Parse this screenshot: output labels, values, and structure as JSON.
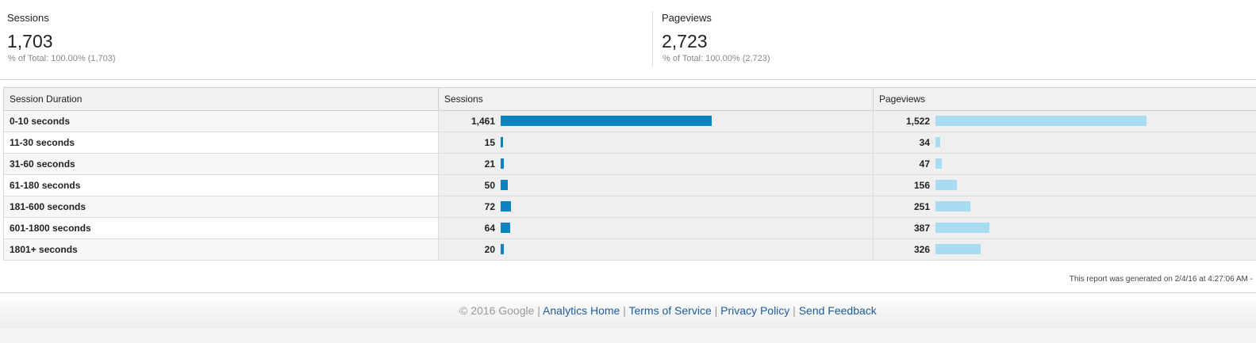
{
  "summary": {
    "sessions": {
      "label": "Sessions",
      "value": "1,703",
      "sub_prefix": "% of Total: ",
      "sub_pct": "100.00% (1,703)"
    },
    "pageviews": {
      "label": "Pageviews",
      "value": "2,723",
      "sub_prefix": "% of Total: ",
      "sub_pct": "100.00% (2,723)"
    }
  },
  "table": {
    "headers": [
      "Session Duration",
      "Sessions",
      "Pageviews"
    ],
    "rows": [
      {
        "duration": "0-10 seconds",
        "sessions": "1,461",
        "pageviews": "1,522"
      },
      {
        "duration": "11-30 seconds",
        "sessions": "15",
        "pageviews": "34"
      },
      {
        "duration": "31-60 seconds",
        "sessions": "21",
        "pageviews": "47"
      },
      {
        "duration": "61-180 seconds",
        "sessions": "50",
        "pageviews": "156"
      },
      {
        "duration": "181-600 seconds",
        "sessions": "72",
        "pageviews": "251"
      },
      {
        "duration": "601-1800 seconds",
        "sessions": "64",
        "pageviews": "387"
      },
      {
        "duration": "1801+ seconds",
        "sessions": "20",
        "pageviews": "326"
      }
    ],
    "session_bar_color": "#0a83bf",
    "pageview_bar_color": "#a8ddf1"
  },
  "generated": "This report was generated on 2/4/16 at 4:27:06 AM -",
  "footer": {
    "copyright": "© 2016 Google",
    "sep": " | ",
    "links": [
      "Analytics Home",
      "Terms of Service",
      "Privacy Policy",
      "Send Feedback"
    ]
  }
}
